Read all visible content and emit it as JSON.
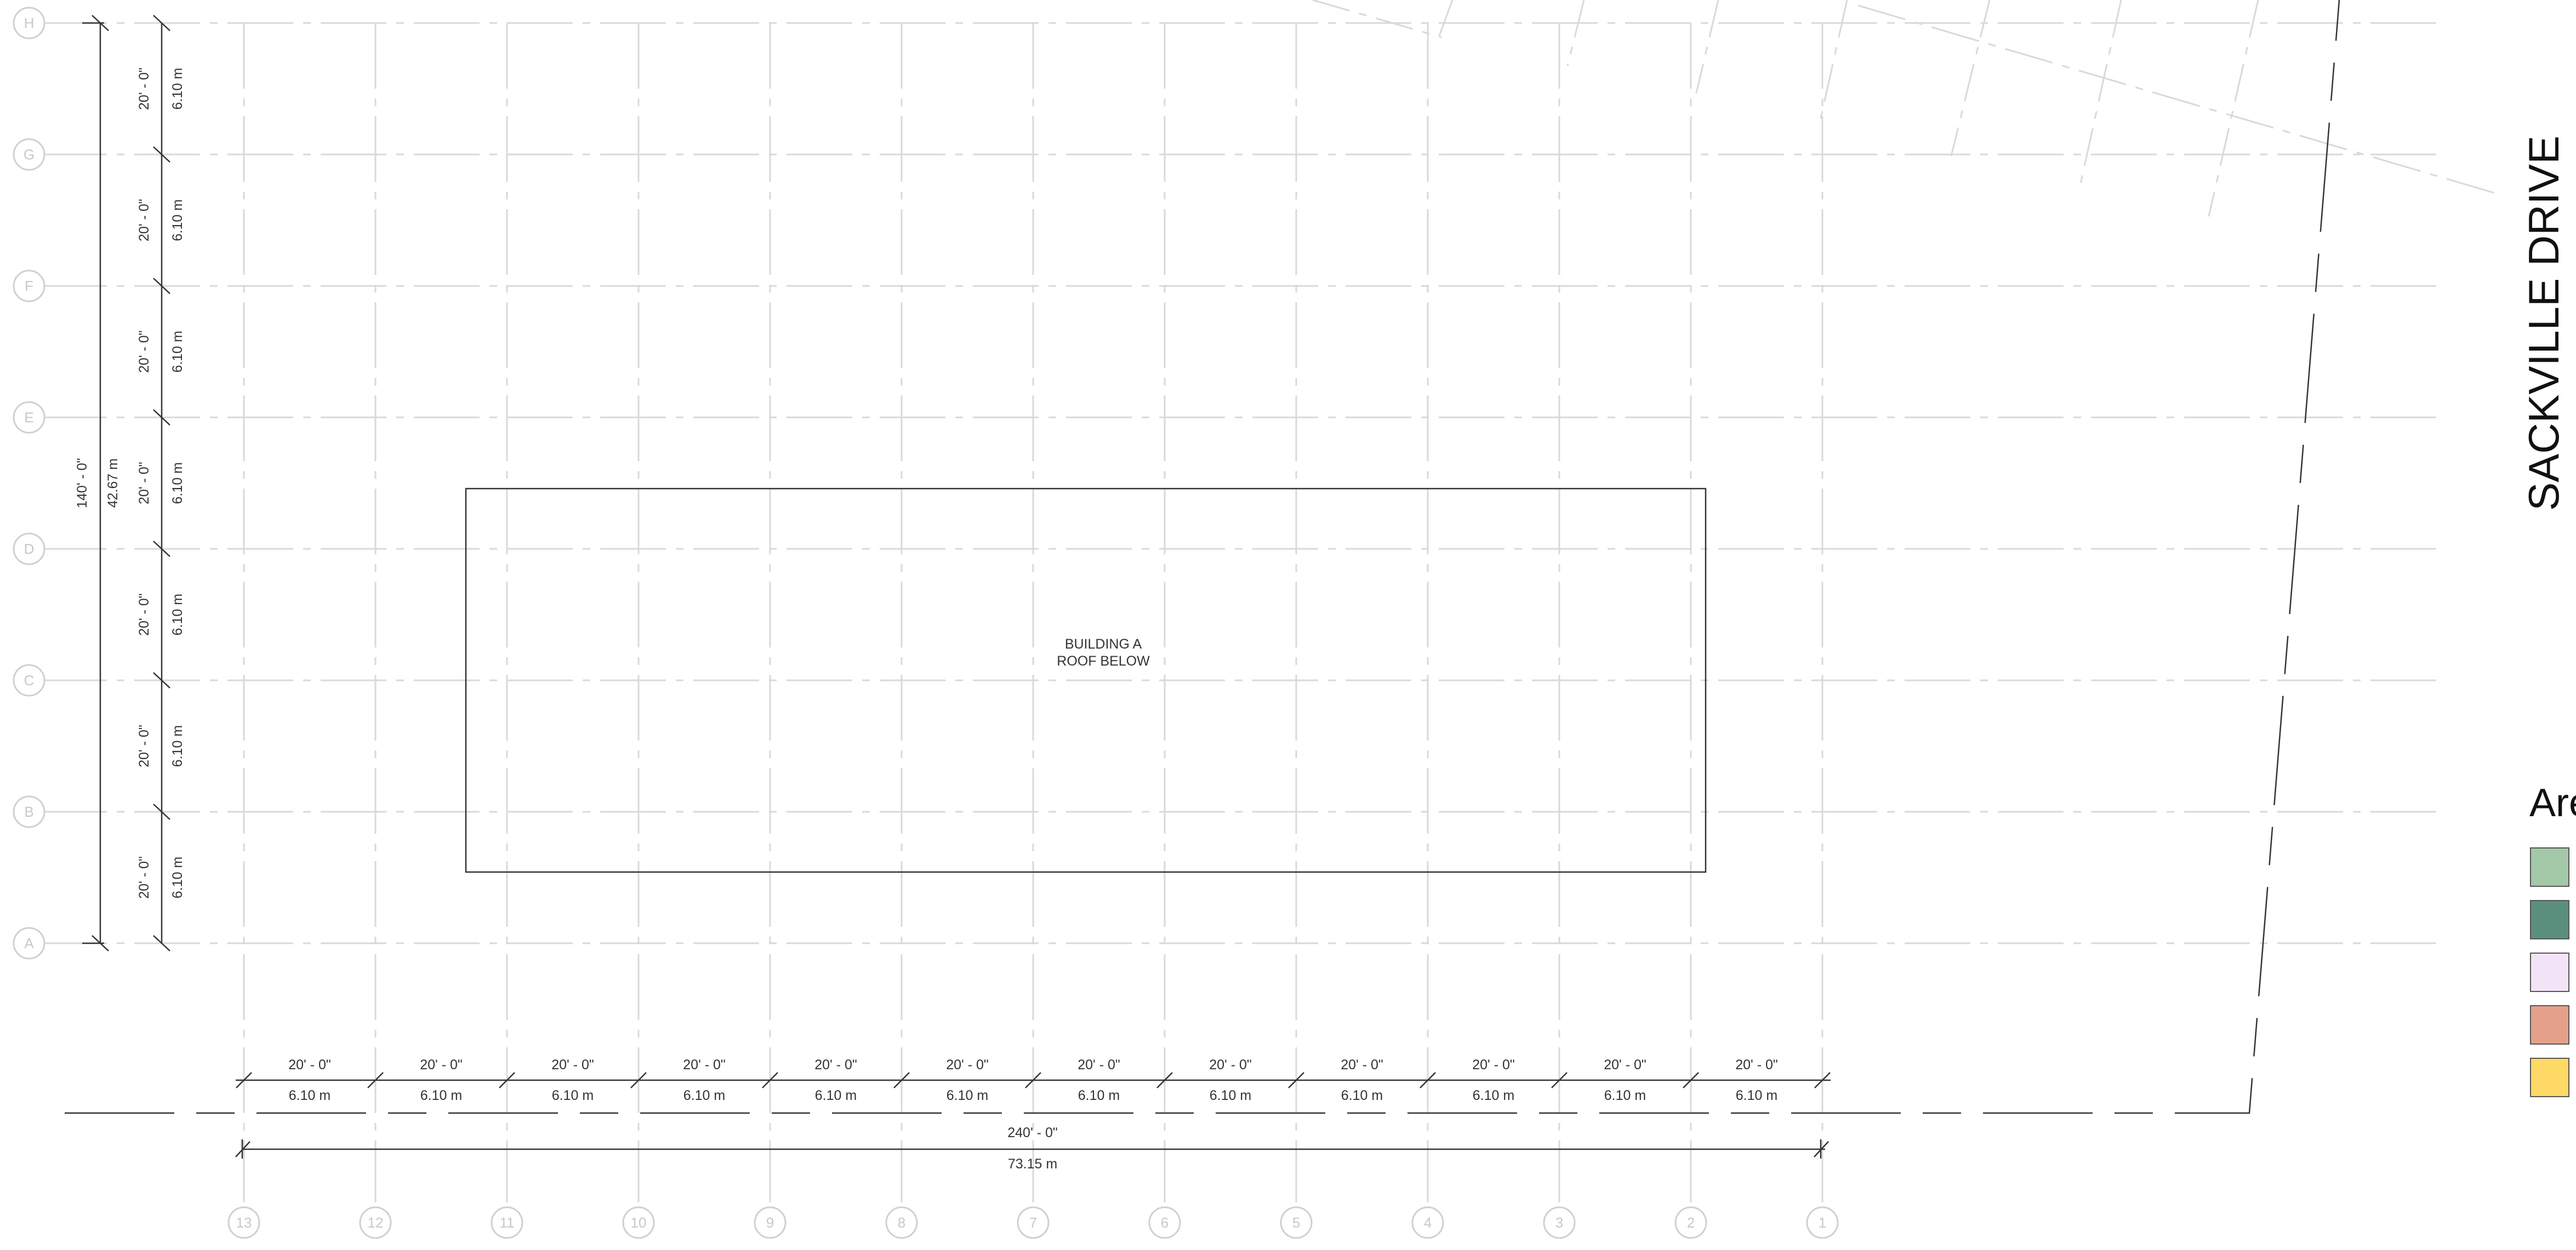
{
  "grid": {
    "rows": [
      "H",
      "G",
      "F",
      "E",
      "D",
      "C",
      "B",
      "A"
    ],
    "columns": [
      "13",
      "12",
      "11",
      "10",
      "9",
      "8",
      "7",
      "6",
      "5",
      "4",
      "3",
      "2",
      "1"
    ]
  },
  "dimensions": {
    "row_spacing_imperial": "20' - 0\"",
    "row_spacing_metric": "6.10 m",
    "total_height_imperial": "140' - 0\"",
    "total_height_metric": "42.67 m",
    "column_spacing_imperial": "20' - 0\"",
    "column_spacing_metric": "6.10 m",
    "total_width_imperial": "240' - 0\"",
    "total_width_metric": "73.15 m"
  },
  "building": {
    "label_line1": "BUILDING A",
    "label_line2": "ROOF BELOW"
  },
  "street": {
    "name": "SACKVILLE DRIVE"
  },
  "legend": {
    "title": "Are",
    "swatches": [
      {
        "color": "#a3c9a8"
      },
      {
        "color": "#5b8f7d"
      },
      {
        "color": "#f3e3f7"
      },
      {
        "color": "#e5a08a"
      },
      {
        "color": "#ffd966"
      }
    ]
  },
  "colors": {
    "grid_line": "#d9d9d9",
    "bubble": "#d0d0d0",
    "outline": "#333333"
  }
}
